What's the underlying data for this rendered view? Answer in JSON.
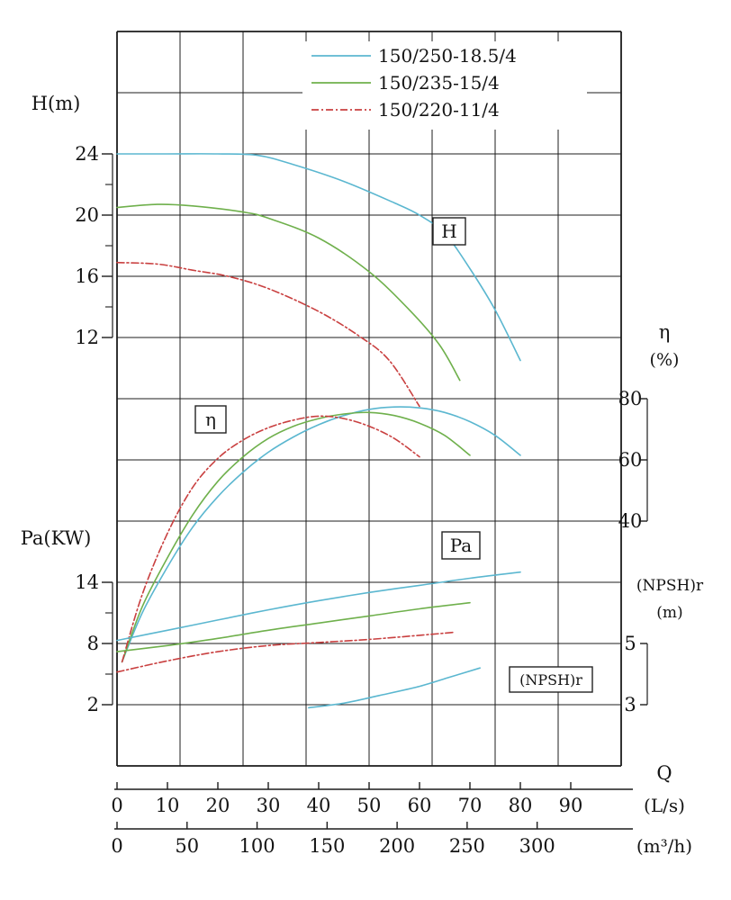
{
  "chart_data": {
    "type": "line",
    "title": "",
    "legend": {
      "position": "top-center",
      "items": [
        {
          "label": "150/250-18.5/4",
          "color": "#5bb7d0",
          "line_style": "solid"
        },
        {
          "label": "150/235-15/4",
          "color": "#6fb04c",
          "line_style": "solid"
        },
        {
          "label": "150/220-11/4",
          "color": "#c94040",
          "line_style": "dash-dot"
        }
      ]
    },
    "axes": {
      "x_primary": {
        "label": "Q",
        "unit": "(L/s)",
        "range": [
          0,
          100
        ],
        "ticks": [
          0,
          10,
          20,
          30,
          40,
          50,
          60,
          70,
          80,
          90
        ]
      },
      "x_secondary": {
        "unit": "(m³/h)",
        "ticks": [
          0,
          50,
          100,
          150,
          200,
          250,
          300
        ]
      },
      "head": {
        "label": "H(m)",
        "ticks": [
          24,
          20,
          16,
          12
        ],
        "minor_ticks": [
          22,
          18,
          14
        ]
      },
      "power": {
        "label": "Pa(KW)",
        "ticks": [
          14,
          8,
          2
        ],
        "minor_ticks": [
          11,
          5
        ]
      },
      "efficiency": {
        "label": "η",
        "unit": "(%)",
        "ticks": [
          80,
          60,
          40
        ]
      },
      "npshr": {
        "label": "(NPSH)r",
        "unit": "(m)",
        "ticks": [
          5,
          3
        ]
      }
    },
    "curve_labels": {
      "head": "H",
      "efficiency": "η",
      "power": "Pa",
      "npshr": "(NPSH)r"
    },
    "grid": true,
    "series": {
      "head": [
        {
          "model": "150/250-18.5/4",
          "color": "#5bb7d0",
          "style": "solid",
          "points": [
            [
              0,
              24
            ],
            [
              10,
              24
            ],
            [
              20,
              24
            ],
            [
              28,
              23.9
            ],
            [
              35,
              23.3
            ],
            [
              45,
              22.2
            ],
            [
              55,
              20.8
            ],
            [
              60,
              20
            ],
            [
              65,
              18.8
            ],
            [
              70,
              16.5
            ],
            [
              75,
              13.8
            ],
            [
              80,
              10.5
            ]
          ]
        },
        {
          "model": "150/235-15/4",
          "color": "#6fb04c",
          "style": "solid",
          "points": [
            [
              0,
              20.5
            ],
            [
              8,
              20.7
            ],
            [
              15,
              20.6
            ],
            [
              25,
              20.2
            ],
            [
              30,
              19.8
            ],
            [
              40,
              18.5
            ],
            [
              50,
              16.3
            ],
            [
              58,
              13.8
            ],
            [
              64,
              11.5
            ],
            [
              68,
              9.2
            ]
          ]
        },
        {
          "model": "150/220-11/4",
          "color": "#c94040",
          "style": "dash-dot",
          "points": [
            [
              0,
              16.9
            ],
            [
              8,
              16.8
            ],
            [
              15,
              16.4
            ],
            [
              22,
              16
            ],
            [
              30,
              15.2
            ],
            [
              40,
              13.7
            ],
            [
              48,
              12.1
            ],
            [
              54,
              10.5
            ],
            [
              60,
              7.5
            ]
          ]
        }
      ],
      "efficiency": [
        {
          "model": "150/250-18.5/4",
          "color": "#5bb7d0",
          "style": "solid",
          "points": [
            [
              1,
              -6
            ],
            [
              5,
              10
            ],
            [
              10,
              25
            ],
            [
              15,
              38
            ],
            [
              20,
              48
            ],
            [
              25,
              56
            ],
            [
              30,
              62.5
            ],
            [
              35,
              67.5
            ],
            [
              40,
              71.5
            ],
            [
              45,
              74.5
            ],
            [
              50,
              76.5
            ],
            [
              55,
              77.3
            ],
            [
              60,
              77
            ],
            [
              65,
              75.5
            ],
            [
              70,
              72.5
            ],
            [
              75,
              68
            ],
            [
              80,
              61.5
            ]
          ]
        },
        {
          "model": "150/235-15/4",
          "color": "#6fb04c",
          "style": "solid",
          "points": [
            [
              1,
              -6
            ],
            [
              5,
              12
            ],
            [
              10,
              28
            ],
            [
              15,
              42
            ],
            [
              20,
              53
            ],
            [
              25,
              61
            ],
            [
              30,
              67
            ],
            [
              35,
              71
            ],
            [
              40,
              73.5
            ],
            [
              45,
              75
            ],
            [
              50,
              75.5
            ],
            [
              55,
              74.5
            ],
            [
              60,
              72
            ],
            [
              65,
              68
            ],
            [
              70,
              61.5
            ]
          ]
        },
        {
          "model": "150/220-11/4",
          "color": "#c94040",
          "style": "dash-dot",
          "points": [
            [
              1,
              -6
            ],
            [
              5,
              16
            ],
            [
              10,
              36
            ],
            [
              15,
              51
            ],
            [
              20,
              60.5
            ],
            [
              25,
              66.5
            ],
            [
              30,
              70.5
            ],
            [
              35,
              73
            ],
            [
              40,
              74.3
            ],
            [
              45,
              73.5
            ],
            [
              50,
              71
            ],
            [
              55,
              67
            ],
            [
              60,
              61
            ]
          ]
        }
      ],
      "power": [
        {
          "model": "150/250-18.5/4",
          "color": "#5bb7d0",
          "style": "solid",
          "points": [
            [
              0,
              8.3
            ],
            [
              10,
              9.3
            ],
            [
              20,
              10.3
            ],
            [
              30,
              11.3
            ],
            [
              40,
              12.2
            ],
            [
              50,
              13
            ],
            [
              60,
              13.7
            ],
            [
              70,
              14.4
            ],
            [
              80,
              15
            ]
          ]
        },
        {
          "model": "150/235-15/4",
          "color": "#6fb04c",
          "style": "solid",
          "points": [
            [
              0,
              7.2
            ],
            [
              10,
              7.8
            ],
            [
              20,
              8.5
            ],
            [
              30,
              9.3
            ],
            [
              40,
              10
            ],
            [
              50,
              10.7
            ],
            [
              60,
              11.4
            ],
            [
              70,
              12
            ]
          ]
        },
        {
          "model": "150/220-11/4",
          "color": "#c94040",
          "style": "dash-dot",
          "points": [
            [
              0,
              5.2
            ],
            [
              10,
              6.3
            ],
            [
              20,
              7.2
            ],
            [
              30,
              7.8
            ],
            [
              40,
              8.1
            ],
            [
              50,
              8.4
            ],
            [
              60,
              8.8
            ],
            [
              67,
              9.1
            ]
          ]
        }
      ],
      "npshr": [
        {
          "model": "150/250-18.5/4",
          "color": "#5bb7d0",
          "style": "solid",
          "points": [
            [
              38,
              2.9
            ],
            [
              45,
              3.05
            ],
            [
              52,
              3.3
            ],
            [
              60,
              3.6
            ],
            [
              66,
              3.9
            ],
            [
              72,
              4.2
            ]
          ]
        }
      ]
    }
  }
}
